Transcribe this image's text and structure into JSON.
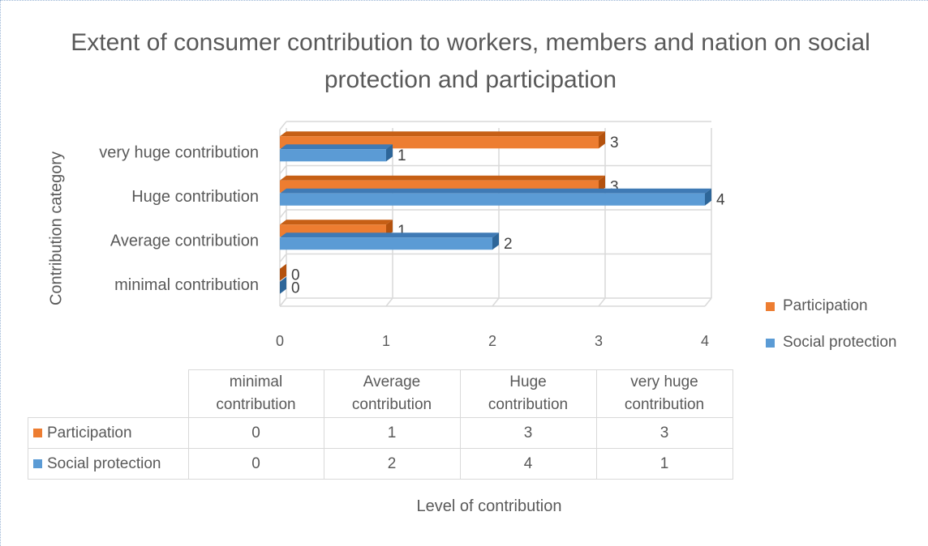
{
  "chart_data": {
    "type": "bar",
    "orientation": "horizontal",
    "title": "Extent of consumer contribution to workers, members and nation on social protection and participation",
    "xlabel": "Level of contribution",
    "ylabel": "Contribution category",
    "categories": [
      "minimal contribution",
      "Average contribution",
      "Huge contribution",
      "very huge contribution"
    ],
    "series": [
      {
        "name": "Participation",
        "color": "#ED7D31",
        "values": [
          0,
          1,
          3,
          3
        ]
      },
      {
        "name": "Social protection",
        "color": "#5B9BD5",
        "values": [
          0,
          2,
          4,
          1
        ]
      }
    ],
    "xlim": [
      0,
      4
    ],
    "xticks": [
      "0",
      "1",
      "2",
      "3",
      "4"
    ],
    "grid": true,
    "legend_position": "right",
    "data_table": {
      "headers": [
        "minimal contribution",
        "Average contribution",
        "Huge contribution",
        "very huge contribution"
      ],
      "header_lines": [
        [
          "minimal",
          "contribution"
        ],
        [
          "Average",
          "contribution"
        ],
        [
          "Huge",
          "contribution"
        ],
        [
          "very huge",
          "contribution"
        ]
      ],
      "rows": [
        {
          "name": "Participation",
          "values": [
            "0",
            "1",
            "3",
            "3"
          ]
        },
        {
          "name": "Social protection",
          "values": [
            "0",
            "2",
            "4",
            "1"
          ]
        }
      ]
    }
  }
}
